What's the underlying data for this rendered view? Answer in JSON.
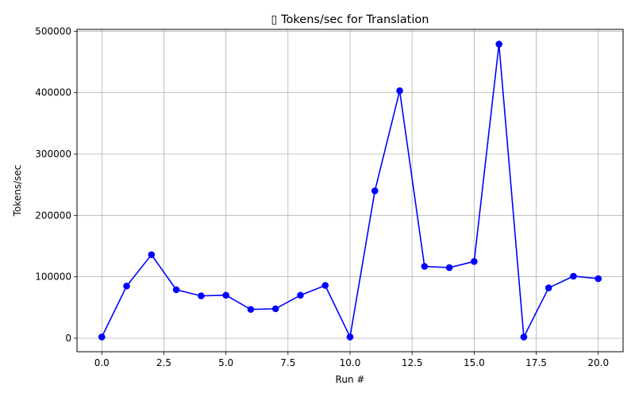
{
  "chart_data": {
    "type": "line",
    "title": "▯ Tokens/sec for Translation",
    "xlabel": "Run #",
    "ylabel": "Tokens/sec",
    "xlim": [
      -1,
      21
    ],
    "ylim": [
      -22000,
      503000
    ],
    "xticks": [
      0,
      2.5,
      5,
      7.5,
      10,
      12.5,
      15,
      17.5,
      20
    ],
    "xtick_labels": [
      "0.0",
      "2.5",
      "5.0",
      "7.5",
      "10.0",
      "12.5",
      "15.0",
      "17.5",
      "20.0"
    ],
    "yticks": [
      0,
      100000,
      200000,
      300000,
      400000,
      500000
    ],
    "ytick_labels": [
      "0",
      "100000",
      "200000",
      "300000",
      "400000",
      "500000"
    ],
    "grid": true,
    "line_color": "#0000ff",
    "series": [
      {
        "x": [
          0,
          1,
          2,
          3,
          4,
          5,
          6,
          7,
          8,
          9,
          10,
          11,
          12,
          13,
          14,
          15,
          16,
          17,
          18,
          19,
          20
        ],
        "values": [
          2000,
          85000,
          136000,
          79000,
          69000,
          70000,
          47000,
          48000,
          70000,
          86000,
          2000,
          240000,
          403000,
          117000,
          115000,
          125000,
          479000,
          2000,
          82000,
          101000,
          97000
        ]
      }
    ]
  }
}
